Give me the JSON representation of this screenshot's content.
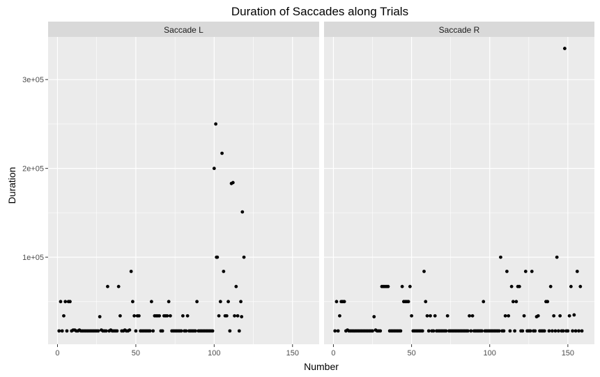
{
  "chart_data": {
    "type": "scatter",
    "title": "Duration of Saccades along Trials",
    "xlabel": "Number",
    "ylabel": "Duration",
    "xlim": [
      -6,
      167
    ],
    "ylim": [
      2000,
      348000
    ],
    "x_ticks": [
      0,
      50,
      100,
      150
    ],
    "y_ticks": [
      {
        "value": 100000,
        "label": "1e+05"
      },
      {
        "value": 200000,
        "label": "2e+05"
      },
      {
        "value": 300000,
        "label": "3e+05"
      }
    ],
    "grid": true,
    "point_color": "#000000",
    "panel_bg": "#ebebeb",
    "strip_bg": "#d9d9d9",
    "panels": [
      {
        "name": "Saccade L",
        "points": [
          [
            1,
            17000
          ],
          [
            2,
            50000
          ],
          [
            3,
            17000
          ],
          [
            4,
            34000
          ],
          [
            5,
            50000
          ],
          [
            6,
            17000
          ],
          [
            7,
            50000
          ],
          [
            8,
            50000
          ],
          [
            9,
            17000
          ],
          [
            10,
            18000
          ],
          [
            11,
            18000
          ],
          [
            12,
            17000
          ],
          [
            13,
            17000
          ],
          [
            14,
            18000
          ],
          [
            15,
            17000
          ],
          [
            16,
            17000
          ],
          [
            17,
            17000
          ],
          [
            18,
            17000
          ],
          [
            19,
            17000
          ],
          [
            20,
            17000
          ],
          [
            21,
            17000
          ],
          [
            22,
            17000
          ],
          [
            23,
            17000
          ],
          [
            24,
            17000
          ],
          [
            25,
            17000
          ],
          [
            26,
            17000
          ],
          [
            27,
            33000
          ],
          [
            28,
            18000
          ],
          [
            29,
            17000
          ],
          [
            30,
            17000
          ],
          [
            31,
            17000
          ],
          [
            32,
            67000
          ],
          [
            33,
            17000
          ],
          [
            34,
            18000
          ],
          [
            35,
            17000
          ],
          [
            36,
            17000
          ],
          [
            37,
            17000
          ],
          [
            38,
            17000
          ],
          [
            39,
            67000
          ],
          [
            40,
            34000
          ],
          [
            41,
            17000
          ],
          [
            42,
            17000
          ],
          [
            43,
            18000
          ],
          [
            44,
            17000
          ],
          [
            45,
            17000
          ],
          [
            46,
            18000
          ],
          [
            47,
            84000
          ],
          [
            48,
            50000
          ],
          [
            49,
            34000
          ],
          [
            50,
            17000
          ],
          [
            51,
            34000
          ],
          [
            52,
            34000
          ],
          [
            53,
            17000
          ],
          [
            54,
            17000
          ],
          [
            55,
            17000
          ],
          [
            56,
            17000
          ],
          [
            57,
            17000
          ],
          [
            58,
            17000
          ],
          [
            59,
            17000
          ],
          [
            60,
            50000
          ],
          [
            61,
            17000
          ],
          [
            62,
            34000
          ],
          [
            63,
            34000
          ],
          [
            64,
            34000
          ],
          [
            65,
            34000
          ],
          [
            66,
            17000
          ],
          [
            67,
            17000
          ],
          [
            68,
            34000
          ],
          [
            69,
            34000
          ],
          [
            70,
            34000
          ],
          [
            71,
            50000
          ],
          [
            72,
            34000
          ],
          [
            73,
            17000
          ],
          [
            74,
            17000
          ],
          [
            75,
            17000
          ],
          [
            76,
            17000
          ],
          [
            77,
            17000
          ],
          [
            78,
            17000
          ],
          [
            79,
            17000
          ],
          [
            80,
            34000
          ],
          [
            81,
            17000
          ],
          [
            82,
            17000
          ],
          [
            83,
            34000
          ],
          [
            84,
            17000
          ],
          [
            85,
            17000
          ],
          [
            86,
            17000
          ],
          [
            87,
            17000
          ],
          [
            88,
            17000
          ],
          [
            89,
            50000
          ],
          [
            90,
            17000
          ],
          [
            91,
            17000
          ],
          [
            92,
            17000
          ],
          [
            93,
            17000
          ],
          [
            94,
            17000
          ],
          [
            95,
            17000
          ],
          [
            96,
            17000
          ],
          [
            97,
            17000
          ],
          [
            98,
            17000
          ],
          [
            99,
            17000
          ],
          [
            100,
            200000
          ],
          [
            101,
            250000
          ],
          [
            101.5,
            100000
          ],
          [
            102,
            100000
          ],
          [
            103,
            34000
          ],
          [
            104,
            50000
          ],
          [
            105,
            217000
          ],
          [
            106,
            84000
          ],
          [
            107,
            34000
          ],
          [
            108,
            34000
          ],
          [
            109,
            50000
          ],
          [
            110,
            17000
          ],
          [
            111,
            183000
          ],
          [
            112,
            184000
          ],
          [
            113,
            34000
          ],
          [
            114,
            67000
          ],
          [
            115,
            34000
          ],
          [
            116,
            17000
          ],
          [
            117,
            50000
          ],
          [
            117.5,
            33000
          ],
          [
            118,
            151000
          ],
          [
            119,
            100000
          ]
        ]
      },
      {
        "name": "Saccade R",
        "points": [
          [
            1,
            17000
          ],
          [
            2,
            50000
          ],
          [
            3,
            17000
          ],
          [
            4,
            34000
          ],
          [
            5,
            50000
          ],
          [
            6,
            50000
          ],
          [
            7,
            50000
          ],
          [
            8,
            17000
          ],
          [
            9,
            18000
          ],
          [
            10,
            17000
          ],
          [
            11,
            17000
          ],
          [
            12,
            17000
          ],
          [
            13,
            17000
          ],
          [
            14,
            17000
          ],
          [
            15,
            17000
          ],
          [
            16,
            17000
          ],
          [
            17,
            17000
          ],
          [
            18,
            17000
          ],
          [
            19,
            17000
          ],
          [
            20,
            17000
          ],
          [
            21,
            17000
          ],
          [
            22,
            17000
          ],
          [
            23,
            17000
          ],
          [
            24,
            17000
          ],
          [
            25,
            17000
          ],
          [
            26,
            33000
          ],
          [
            27,
            18000
          ],
          [
            28,
            17000
          ],
          [
            29,
            17000
          ],
          [
            30,
            17000
          ],
          [
            31,
            67000
          ],
          [
            32,
            67000
          ],
          [
            33,
            67000
          ],
          [
            34,
            67000
          ],
          [
            35,
            67000
          ],
          [
            36,
            17000
          ],
          [
            37,
            17000
          ],
          [
            38,
            17000
          ],
          [
            39,
            17000
          ],
          [
            40,
            17000
          ],
          [
            41,
            17000
          ],
          [
            42,
            17000
          ],
          [
            43,
            17000
          ],
          [
            44,
            67000
          ],
          [
            45,
            50000
          ],
          [
            46,
            50000
          ],
          [
            47,
            50000
          ],
          [
            48,
            50000
          ],
          [
            49,
            67000
          ],
          [
            50,
            34000
          ],
          [
            51,
            17000
          ],
          [
            52,
            17000
          ],
          [
            53,
            17000
          ],
          [
            54,
            17000
          ],
          [
            55,
            17000
          ],
          [
            56,
            17000
          ],
          [
            57,
            17000
          ],
          [
            58,
            84000
          ],
          [
            59,
            50000
          ],
          [
            60,
            34000
          ],
          [
            61,
            17000
          ],
          [
            62,
            34000
          ],
          [
            63,
            17000
          ],
          [
            64,
            17000
          ],
          [
            65,
            34000
          ],
          [
            66,
            17000
          ],
          [
            67,
            17000
          ],
          [
            68,
            17000
          ],
          [
            69,
            17000
          ],
          [
            70,
            17000
          ],
          [
            71,
            17000
          ],
          [
            72,
            17000
          ],
          [
            73,
            34000
          ],
          [
            74,
            17000
          ],
          [
            75,
            17000
          ],
          [
            76,
            17000
          ],
          [
            77,
            17000
          ],
          [
            78,
            17000
          ],
          [
            79,
            17000
          ],
          [
            80,
            17000
          ],
          [
            81,
            17000
          ],
          [
            82,
            17000
          ],
          [
            83,
            17000
          ],
          [
            84,
            17000
          ],
          [
            85,
            17000
          ],
          [
            86,
            17000
          ],
          [
            87,
            34000
          ],
          [
            88,
            17000
          ],
          [
            89,
            34000
          ],
          [
            90,
            17000
          ],
          [
            91,
            17000
          ],
          [
            92,
            17000
          ],
          [
            93,
            17000
          ],
          [
            94,
            17000
          ],
          [
            95,
            17000
          ],
          [
            96,
            50000
          ],
          [
            97,
            17000
          ],
          [
            98,
            17000
          ],
          [
            99,
            17000
          ],
          [
            100,
            17000
          ],
          [
            101,
            17000
          ],
          [
            102,
            17000
          ],
          [
            103,
            17000
          ],
          [
            104,
            17000
          ],
          [
            105,
            17000
          ],
          [
            106,
            17000
          ],
          [
            107,
            100000
          ],
          [
            108,
            17000
          ],
          [
            109,
            17000
          ],
          [
            110,
            34000
          ],
          [
            111,
            84000
          ],
          [
            112,
            34000
          ],
          [
            113,
            17000
          ],
          [
            114,
            67000
          ],
          [
            115,
            50000
          ],
          [
            116,
            17000
          ],
          [
            117,
            50000
          ],
          [
            118,
            67000
          ],
          [
            119,
            67000
          ],
          [
            120,
            17000
          ],
          [
            121,
            17000
          ],
          [
            122,
            34000
          ],
          [
            123,
            84000
          ],
          [
            124,
            17000
          ],
          [
            125,
            17000
          ],
          [
            126,
            17000
          ],
          [
            127,
            84000
          ],
          [
            128,
            17000
          ],
          [
            129,
            17000
          ],
          [
            130,
            33000
          ],
          [
            131,
            34000
          ],
          [
            132,
            17000
          ],
          [
            133,
            17000
          ],
          [
            134,
            17000
          ],
          [
            135,
            17000
          ],
          [
            136,
            50000
          ],
          [
            137,
            50000
          ],
          [
            138,
            17000
          ],
          [
            139,
            67000
          ],
          [
            140,
            17000
          ],
          [
            141,
            34000
          ],
          [
            142,
            17000
          ],
          [
            143,
            100000
          ],
          [
            144,
            17000
          ],
          [
            145,
            34000
          ],
          [
            146,
            17000
          ],
          [
            147,
            17000
          ],
          [
            148,
            335000
          ],
          [
            149,
            17000
          ],
          [
            150,
            17000
          ],
          [
            151,
            34000
          ],
          [
            152,
            67000
          ],
          [
            153,
            17000
          ],
          [
            154,
            35000
          ],
          [
            155,
            17000
          ],
          [
            156,
            84000
          ],
          [
            157,
            17000
          ],
          [
            158,
            67000
          ],
          [
            159,
            17000
          ]
        ]
      }
    ]
  }
}
